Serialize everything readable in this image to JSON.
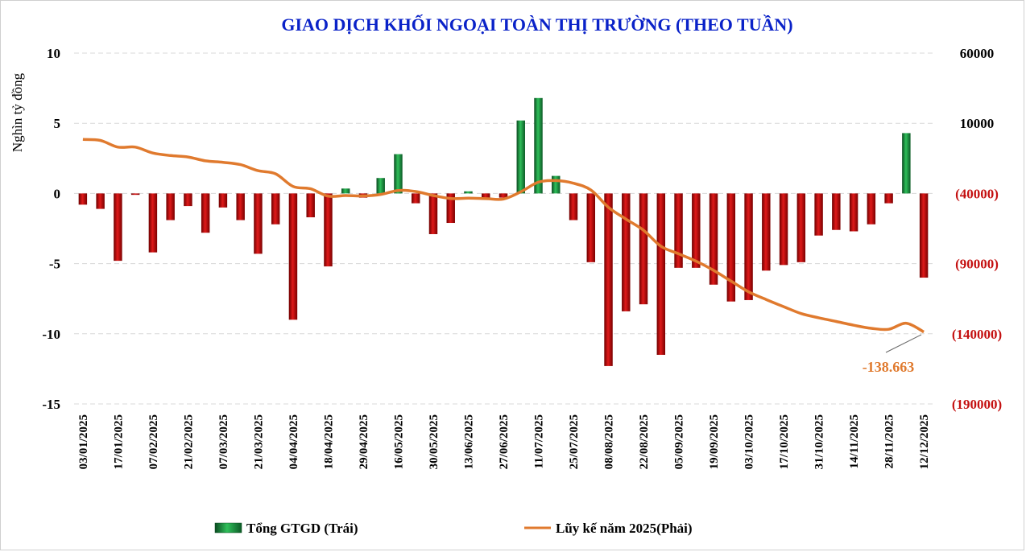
{
  "chart_data": {
    "type": "bar+line",
    "title": "GIAO DỊCH KHỐI NGOẠI TOÀN THỊ TRƯỜNG (THEO TUẦN)",
    "ylabel_left": "Nghìn tỷ đồng",
    "ylim_left": [
      -15,
      10
    ],
    "yticks_left": [
      "10",
      "5",
      "0",
      "-5",
      "-10",
      "-15"
    ],
    "ylim_right": [
      -190000,
      60000
    ],
    "yticks_right": [
      "60000",
      "10000",
      "(40000)",
      "(90000)",
      "(140000)",
      "(190000)"
    ],
    "grid": true,
    "legend_position": "bottom",
    "x_tick_labels": [
      "03/01/2025",
      "17/01/2025",
      "07/02/2025",
      "21/02/2025",
      "07/03/2025",
      "21/03/2025",
      "04/04/2025",
      "18/04/2025",
      "29/04/2025",
      "16/05/2025",
      "30/05/2025",
      "13/06/2025",
      "27/06/2025",
      "11/07/2025",
      "25/07/2025",
      "08/08/2025",
      "22/08/2025",
      "05/09/2025",
      "19/09/2025",
      "03/10/2025",
      "17/10/2025",
      "31/10/2025",
      "14/11/2025",
      "28/11/2025",
      "12/12/2025"
    ],
    "bar_series": {
      "name": "Tổng GTGD (Trái)",
      "positive_color": "#1a8a3c",
      "negative_color": "#c41010",
      "values": [
        -0.8,
        -1.1,
        -4.8,
        -0.1,
        -4.2,
        -1.9,
        -0.9,
        -2.8,
        -1.0,
        -1.9,
        -4.3,
        -2.2,
        -9.0,
        -1.7,
        -5.2,
        0.35,
        -0.3,
        1.1,
        2.8,
        -0.7,
        -2.9,
        -2.1,
        0.15,
        -0.3,
        -0.3,
        5.2,
        6.8,
        1.25,
        -1.9,
        -4.9,
        -12.3,
        -8.4,
        -7.9,
        -11.5,
        -5.3,
        -5.3,
        -6.5,
        -7.7,
        -7.6,
        -5.5,
        -5.1,
        -4.9,
        -3.0,
        -2.6,
        -2.7,
        -2.2,
        -0.7,
        4.3,
        -6.0
      ]
    },
    "line_series": {
      "name": "Lũy kế năm 2025(Phải)",
      "color": "#e07a2e",
      "values": [
        -1500,
        -2200,
        -7000,
        -7000,
        -11200,
        -13000,
        -14000,
        -16800,
        -17800,
        -19500,
        -23800,
        -26000,
        -35000,
        -36700,
        -41900,
        -41500,
        -41800,
        -40700,
        -37900,
        -38600,
        -41500,
        -43600,
        -43400,
        -43700,
        -44000,
        -38800,
        -32000,
        -30800,
        -32700,
        -37600,
        -49900,
        -58300,
        -66200,
        -77700,
        -83000,
        -88300,
        -94800,
        -102500,
        -110100,
        -115600,
        -120700,
        -125600,
        -128600,
        -131200,
        -133900,
        -136100,
        -136800,
        -132500,
        -138663
      ]
    },
    "annotation": "-138.663"
  }
}
